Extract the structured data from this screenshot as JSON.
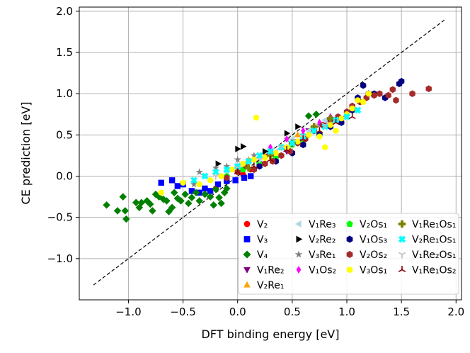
{
  "chart_data": {
    "type": "scatter",
    "title": "",
    "xlabel": "DFT binding energy [eV]",
    "ylabel": "CE prediction [eV]",
    "xlim": [
      -1.45,
      2.05
    ],
    "ylim": [
      -1.5,
      2.05
    ],
    "grid": true,
    "x_ticks": [
      -1.0,
      -0.5,
      0.0,
      0.5,
      1.0,
      1.5,
      2.0
    ],
    "x_tick_labels": [
      "−1.0",
      "−0.5",
      "0.0",
      "0.5",
      "1.0",
      "1.5",
      "2.0"
    ],
    "y_ticks": [
      -1.0,
      -0.5,
      0.0,
      0.5,
      1.0,
      1.5,
      2.0
    ],
    "y_tick_labels": [
      "−1.0",
      "−0.5",
      "0.0",
      "0.5",
      "1.0",
      "1.5",
      "2.0"
    ],
    "reference_line": {
      "x": [
        -1.32,
        1.9
      ],
      "y": [
        -1.32,
        1.9
      ],
      "style": "dashed",
      "color": "#000000"
    },
    "legend_position": "lower-right",
    "series": [
      {
        "name": "V₂",
        "color": "#ff0000",
        "marker": "circle",
        "points": [
          [
            0.05,
            0.02
          ],
          [
            0.12,
            0.08
          ],
          [
            0.3,
            0.3
          ],
          [
            -0.2,
            -0.15
          ]
        ]
      },
      {
        "name": "V₃",
        "color": "#0000ff",
        "marker": "square",
        "points": [
          [
            -0.7,
            -0.08
          ],
          [
            -0.6,
            -0.05
          ],
          [
            -0.55,
            -0.12
          ],
          [
            -0.5,
            -0.1
          ],
          [
            -0.42,
            -0.18
          ],
          [
            -0.35,
            -0.2
          ],
          [
            -0.3,
            -0.15
          ],
          [
            -0.25,
            -0.18
          ],
          [
            -0.18,
            -0.1
          ],
          [
            -0.1,
            -0.06
          ],
          [
            -0.02,
            -0.05
          ],
          [
            0.06,
            -0.02
          ],
          [
            0.12,
            0.0
          ]
        ]
      },
      {
        "name": "V₄",
        "color": "#008000",
        "marker": "diamond",
        "points": [
          [
            -1.2,
            -0.35
          ],
          [
            -1.1,
            -0.42
          ],
          [
            -1.05,
            -0.25
          ],
          [
            -1.03,
            -0.42
          ],
          [
            -1.02,
            -0.52
          ],
          [
            -0.93,
            -0.32
          ],
          [
            -0.9,
            -0.38
          ],
          [
            -0.88,
            -0.32
          ],
          [
            -0.83,
            -0.3
          ],
          [
            -0.8,
            -0.34
          ],
          [
            -0.78,
            -0.42
          ],
          [
            -0.75,
            -0.22
          ],
          [
            -0.72,
            -0.25
          ],
          [
            -0.68,
            -0.28
          ],
          [
            -0.65,
            -0.3
          ],
          [
            -0.63,
            -0.43
          ],
          [
            -0.6,
            -0.38
          ],
          [
            -0.58,
            -0.2
          ],
          [
            -0.55,
            -0.27
          ],
          [
            -0.52,
            -0.3
          ],
          [
            -0.48,
            -0.22
          ],
          [
            -0.45,
            -0.33
          ],
          [
            -0.42,
            -0.26
          ],
          [
            -0.38,
            -0.2
          ],
          [
            -0.35,
            -0.3
          ],
          [
            -0.3,
            -0.22
          ],
          [
            -0.25,
            -0.25
          ],
          [
            -0.22,
            -0.35
          ],
          [
            -0.2,
            -0.16
          ],
          [
            -0.17,
            -0.26
          ],
          [
            -0.15,
            -0.33
          ],
          [
            -0.12,
            -0.2
          ],
          [
            -0.1,
            -0.15
          ],
          [
            0.65,
            0.73
          ],
          [
            0.72,
            0.75
          ]
        ]
      },
      {
        "name": "V₁Re₂",
        "color": "#800080",
        "marker": "triangle-down",
        "points": [
          [
            0.2,
            0.15
          ],
          [
            0.35,
            0.2
          ],
          [
            0.45,
            0.3
          ],
          [
            0.55,
            0.42
          ],
          [
            0.65,
            0.55
          ],
          [
            0.8,
            0.62
          ],
          [
            0.95,
            0.7
          ]
        ]
      },
      {
        "name": "V₂Re₁",
        "color": "#ffa500",
        "marker": "triangle-up",
        "points": [
          [
            0.1,
            0.2
          ],
          [
            0.25,
            0.25
          ],
          [
            0.4,
            0.35
          ],
          [
            0.55,
            0.5
          ],
          [
            0.7,
            0.6
          ]
        ]
      },
      {
        "name": "V₁Re₃",
        "color": "#add8e6",
        "marker": "triangle-left",
        "points": [
          [
            -0.1,
            0.05
          ],
          [
            0.05,
            0.1
          ],
          [
            0.2,
            0.22
          ],
          [
            0.35,
            0.3
          ],
          [
            0.5,
            0.45
          ],
          [
            0.65,
            0.55
          ],
          [
            0.8,
            0.68
          ]
        ]
      },
      {
        "name": "V₂Re₂",
        "color": "#000000",
        "marker": "triangle-right",
        "points": [
          [
            -0.18,
            0.15
          ],
          [
            0.0,
            0.33
          ],
          [
            0.05,
            0.36
          ],
          [
            0.25,
            0.3
          ],
          [
            0.45,
            0.52
          ],
          [
            0.55,
            0.6
          ]
        ]
      },
      {
        "name": "V₃Re₁",
        "color": "#808080",
        "marker": "star",
        "points": [
          [
            -0.4,
            -0.1
          ],
          [
            -0.35,
            0.05
          ],
          [
            -0.2,
            0.1
          ],
          [
            -0.1,
            0.12
          ],
          [
            0.0,
            0.2
          ],
          [
            0.15,
            0.25
          ],
          [
            0.3,
            0.32
          ],
          [
            0.45,
            0.45
          ],
          [
            0.6,
            0.5
          ],
          [
            0.75,
            0.62
          ],
          [
            0.9,
            0.7
          ]
        ]
      },
      {
        "name": "V₁Os₂",
        "color": "#ff00ff",
        "marker": "diamond-thin",
        "points": [
          [
            0.3,
            0.35
          ],
          [
            0.45,
            0.45
          ],
          [
            0.6,
            0.55
          ],
          [
            0.75,
            0.65
          ],
          [
            0.85,
            0.72
          ]
        ]
      },
      {
        "name": "V₂Os₁",
        "color": "#00ff00",
        "marker": "pentagon",
        "points": [
          [
            -0.1,
            0.0
          ],
          [
            0.05,
            0.08
          ],
          [
            0.2,
            0.15
          ],
          [
            0.35,
            0.22
          ],
          [
            0.5,
            0.38
          ],
          [
            0.6,
            0.42
          ]
        ]
      },
      {
        "name": "V₁Os₃",
        "color": "#000080",
        "marker": "hexagon",
        "points": [
          [
            0.2,
            0.12
          ],
          [
            0.35,
            0.18
          ],
          [
            0.5,
            0.28
          ],
          [
            0.6,
            0.38
          ],
          [
            0.75,
            0.5
          ],
          [
            0.85,
            0.6
          ],
          [
            0.95,
            0.65
          ],
          [
            1.05,
            0.8
          ],
          [
            1.1,
            0.95
          ],
          [
            1.15,
            1.1
          ],
          [
            1.2,
            1.0
          ],
          [
            1.25,
            1.0
          ],
          [
            1.35,
            0.95
          ],
          [
            1.48,
            1.12
          ],
          [
            1.5,
            1.15
          ]
        ]
      },
      {
        "name": "V₂Os₂",
        "color": "#a52a2a",
        "marker": "hexagon",
        "points": [
          [
            -0.1,
            -0.02
          ],
          [
            0.0,
            0.05
          ],
          [
            0.08,
            0.12
          ],
          [
            0.15,
            0.08
          ],
          [
            0.25,
            0.15
          ],
          [
            0.32,
            0.18
          ],
          [
            0.4,
            0.25
          ],
          [
            0.48,
            0.3
          ],
          [
            0.55,
            0.4
          ],
          [
            0.62,
            0.45
          ],
          [
            0.7,
            0.55
          ],
          [
            0.78,
            0.62
          ],
          [
            0.85,
            0.68
          ],
          [
            0.92,
            0.72
          ],
          [
            1.0,
            0.78
          ],
          [
            1.05,
            0.85
          ],
          [
            1.12,
            0.9
          ],
          [
            1.18,
            0.95
          ],
          [
            1.25,
            0.98
          ],
          [
            1.3,
            1.0
          ],
          [
            1.38,
            0.98
          ],
          [
            1.42,
            1.05
          ],
          [
            1.45,
            0.92
          ],
          [
            1.75,
            1.06
          ],
          [
            1.6,
            1.0
          ]
        ]
      },
      {
        "name": "V₃Os₁",
        "color": "#ffff00",
        "marker": "circle",
        "points": [
          [
            -0.7,
            -0.2
          ],
          [
            -0.5,
            -0.08
          ],
          [
            -0.35,
            -0.1
          ],
          [
            -0.25,
            -0.05
          ],
          [
            -0.15,
            0.0
          ],
          [
            -0.05,
            0.08
          ],
          [
            0.05,
            0.15
          ],
          [
            0.15,
            0.2
          ],
          [
            0.17,
            0.71
          ],
          [
            0.25,
            0.22
          ],
          [
            0.35,
            0.28
          ],
          [
            0.45,
            0.35
          ],
          [
            0.55,
            0.42
          ],
          [
            0.65,
            0.5
          ],
          [
            0.75,
            0.48
          ],
          [
            0.8,
            0.35
          ],
          [
            0.85,
            0.62
          ],
          [
            0.9,
            0.55
          ],
          [
            0.95,
            0.7
          ],
          [
            1.0,
            0.75
          ],
          [
            1.05,
            0.82
          ],
          [
            1.1,
            0.92
          ],
          [
            1.15,
            0.9
          ],
          [
            1.2,
            1.0
          ]
        ]
      },
      {
        "name": "V₁Re₁Os₁",
        "color": "#808000",
        "marker": "plus",
        "points": [
          [
            0.1,
            0.1
          ],
          [
            0.3,
            0.25
          ],
          [
            0.5,
            0.4
          ],
          [
            0.7,
            0.6
          ],
          [
            0.85,
            0.7
          ]
        ]
      },
      {
        "name": "V₂Re₁Os₁",
        "color": "#00ffff",
        "marker": "x",
        "points": [
          [
            -0.4,
            -0.05
          ],
          [
            -0.3,
            0.0
          ],
          [
            -0.2,
            0.05
          ],
          [
            -0.1,
            0.08
          ],
          [
            0.0,
            0.12
          ],
          [
            0.1,
            0.18
          ],
          [
            0.2,
            0.25
          ],
          [
            0.3,
            0.3
          ],
          [
            0.4,
            0.35
          ],
          [
            0.5,
            0.4
          ],
          [
            0.6,
            0.48
          ],
          [
            0.7,
            0.55
          ],
          [
            0.8,
            0.6
          ],
          [
            0.9,
            0.68
          ],
          [
            1.0,
            0.72
          ],
          [
            1.1,
            0.8
          ]
        ]
      },
      {
        "name": "V₁Re₂Os₁",
        "color": "#c0c0c0",
        "marker": "tri-down",
        "points": [
          [
            -0.2,
            0.0
          ],
          [
            0.0,
            0.1
          ],
          [
            0.2,
            0.2
          ],
          [
            0.4,
            0.35
          ],
          [
            0.6,
            0.48
          ],
          [
            0.8,
            0.62
          ]
        ]
      },
      {
        "name": "V₁Re₁Os₂",
        "color": "#8b0000",
        "marker": "tri-up",
        "points": [
          [
            0.0,
            0.05
          ],
          [
            0.15,
            0.12
          ],
          [
            0.3,
            0.2
          ],
          [
            0.45,
            0.32
          ],
          [
            0.6,
            0.45
          ],
          [
            0.75,
            0.55
          ],
          [
            0.9,
            0.65
          ],
          [
            1.05,
            0.72
          ]
        ]
      }
    ]
  }
}
